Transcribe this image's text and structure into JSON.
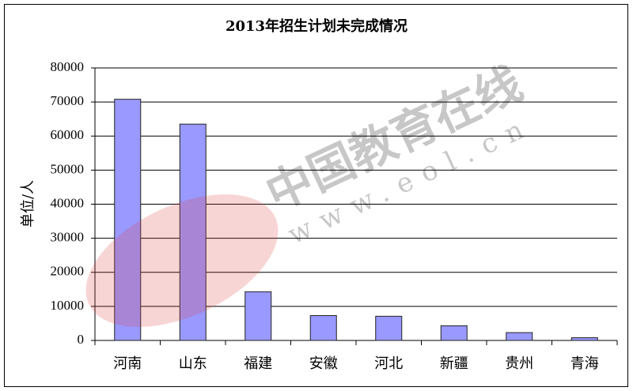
{
  "chart_data": {
    "type": "bar",
    "title": "2013年招生计划未完成情况",
    "y_label": "单位/人",
    "categories": [
      "河南",
      "山东",
      "福建",
      "安徽",
      "河北",
      "新疆",
      "贵州",
      "青海"
    ],
    "values": [
      70800,
      63500,
      14300,
      7300,
      7100,
      4300,
      2300,
      800
    ],
    "color": "#9999ff",
    "ylim": [
      0,
      80000
    ],
    "yticks": [
      0,
      10000,
      20000,
      30000,
      40000,
      50000,
      60000,
      70000,
      80000
    ],
    "grid": true,
    "watermark": "中国教育在线",
    "watermark_url": "www.eol.cn"
  }
}
